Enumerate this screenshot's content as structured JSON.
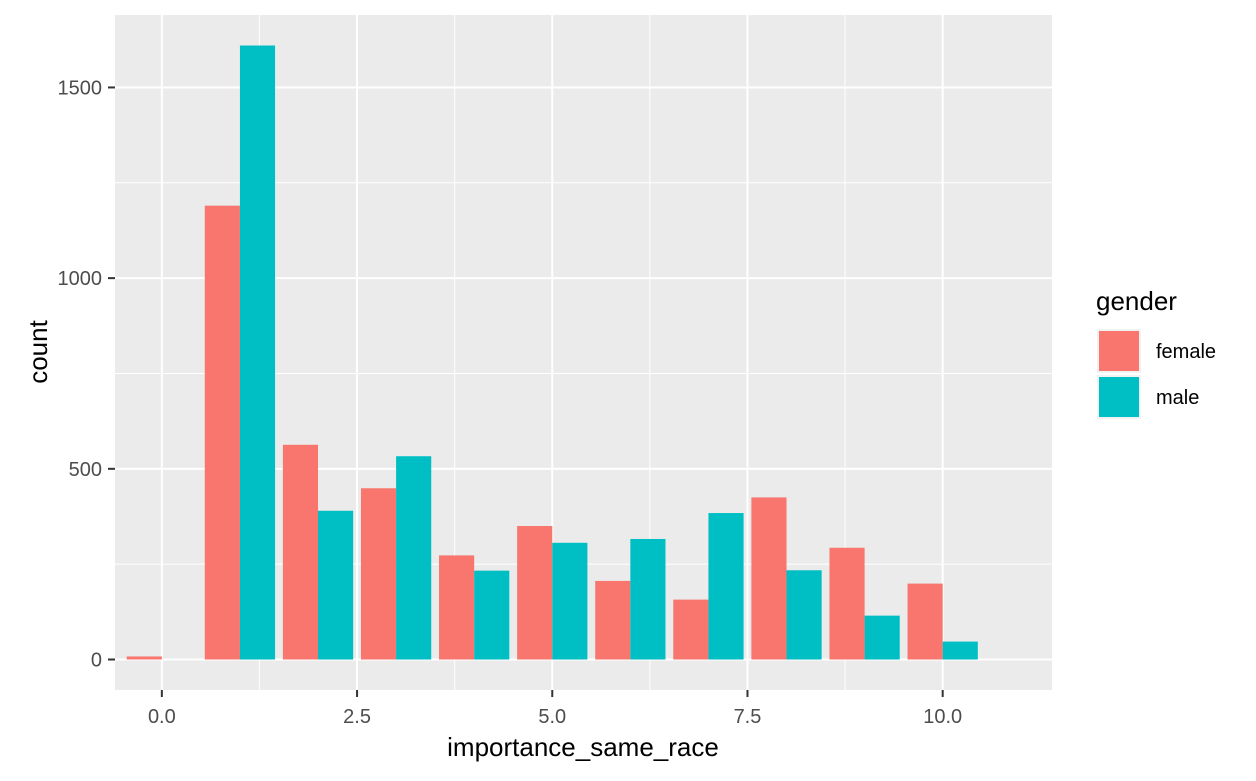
{
  "chart_data": {
    "type": "bar",
    "xlabel": "importance_same_race",
    "ylabel": "count",
    "xlim": [
      -0.6,
      11.4
    ],
    "ylim": [
      -80,
      1690
    ],
    "x_ticks": [
      "0.0",
      "2.5",
      "5.0",
      "7.5",
      "10.0"
    ],
    "x_tick_values": [
      0,
      2.5,
      5,
      7.5,
      10
    ],
    "y_ticks": [
      "0",
      "500",
      "1000",
      "1500"
    ],
    "y_tick_values": [
      0,
      500,
      1000,
      1500
    ],
    "categories": [
      0,
      1,
      2,
      3,
      4,
      5,
      6,
      7,
      8,
      9,
      10
    ],
    "series": [
      {
        "name": "female",
        "color": "#F8766D",
        "values": [
          8,
          1190,
          563,
          449,
          273,
          350,
          206,
          157,
          425,
          293,
          199
        ]
      },
      {
        "name": "male",
        "color": "#00BFC4",
        "values": [
          0,
          1610,
          390,
          533,
          233,
          306,
          316,
          384,
          234,
          115,
          47
        ]
      }
    ],
    "legend": {
      "title": "gender",
      "placement": "right"
    },
    "grid": true
  }
}
